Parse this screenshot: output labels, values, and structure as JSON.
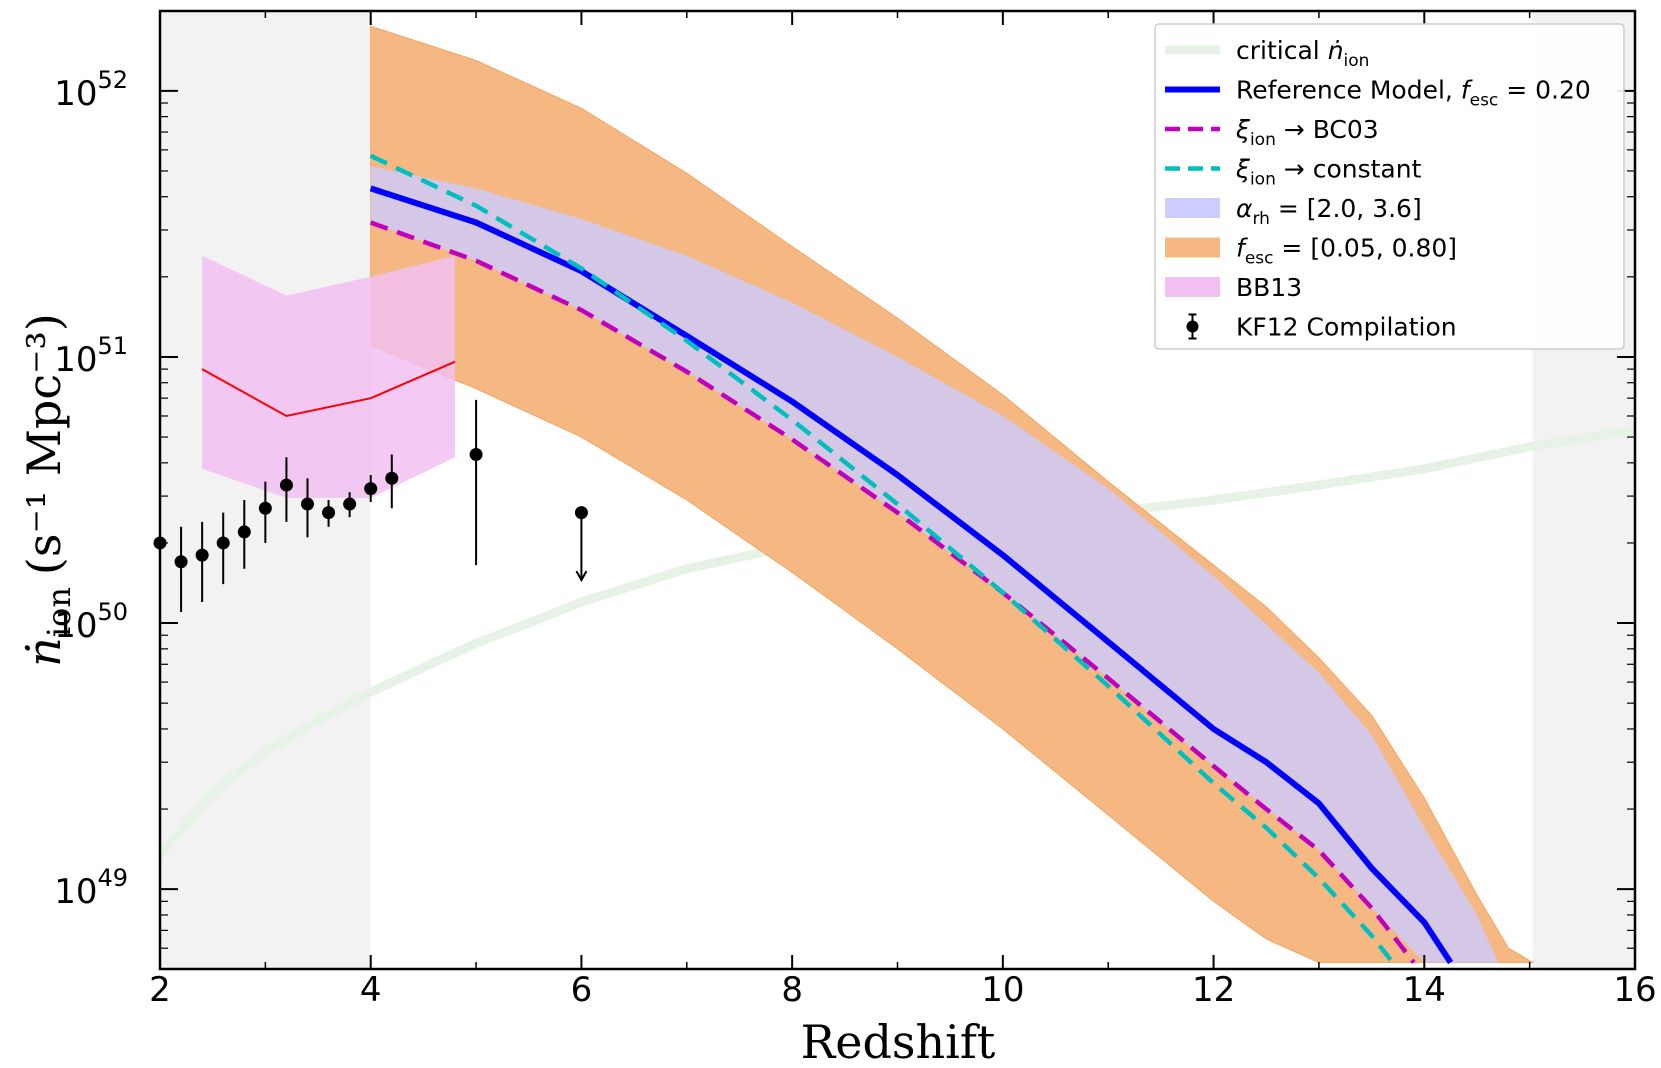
{
  "chart_data": {
    "type": "line",
    "xlabel": "Redshift",
    "ylabel_symbol": "ṅ",
    "ylabel_sub": "ion",
    "ylabel_units": "(s⁻¹ Mpc⁻³)",
    "xlim": [
      2,
      16
    ],
    "ylim_log10": [
      48.7,
      52.3
    ],
    "x_ticks": [
      2,
      4,
      6,
      8,
      10,
      12,
      14,
      16
    ],
    "x_tick_labels": [
      "2",
      "4",
      "6",
      "8",
      "10",
      "12",
      "14",
      "16"
    ],
    "y_ticks_log10": [
      49,
      50,
      51,
      52
    ],
    "y_tick_base": "10",
    "y_tick_exps": [
      "49",
      "50",
      "51",
      "52"
    ],
    "shaded_regions": [
      {
        "x0": 2,
        "x1": 4,
        "color": "#f2f2f2"
      },
      {
        "x0": 15.03,
        "x1": 16,
        "color": "#f2f2f2"
      }
    ],
    "colors": {
      "critical": "#e6f2e6",
      "reference": "#0000ff",
      "bc03": "#bf00bf",
      "constant": "#00bfbf",
      "alpha_band": "#ccccff",
      "fesc_band": "#f5b882",
      "fesc_edge": "#f3a563",
      "bb13_band": "#f2bff2",
      "bb13_line": "#ff0000",
      "kf12": "#000000"
    },
    "series": [
      {
        "name": "critical",
        "kind": "line",
        "colorKey": "critical",
        "x": [
          2,
          2.5,
          3,
          3.5,
          4,
          4.5,
          5,
          5.5,
          6,
          7,
          8,
          9,
          10,
          11,
          12,
          13,
          14,
          15,
          16
        ],
        "y": [
          1.35e+49,
          2.3e+49,
          3.3e+49,
          4.3e+49,
          5.5e+49,
          6.8e+49,
          8.4e+49,
          1e+50,
          1.2e+50,
          1.6e+50,
          1.95e+50,
          2.2e+50,
          2.4e+50,
          2.6e+50,
          2.9e+50,
          3.3e+50,
          3.8e+50,
          4.6e+50,
          5.3e+50
        ]
      },
      {
        "name": "reference",
        "kind": "line",
        "colorKey": "reference",
        "x": [
          4,
          5,
          6,
          7,
          8,
          9,
          10,
          11,
          12,
          12.5,
          13,
          13.5,
          14,
          14.25
        ],
        "y": [
          4.3e+51,
          3.2e+51,
          2.1e+51,
          1.2e+51,
          6.8e+50,
          3.6e+50,
          1.8e+50,
          8.5e+49,
          4e+49,
          3e+49,
          2.1e+49,
          1.2e+49,
          7.5e+48,
          5.3e+48
        ]
      },
      {
        "name": "bc03",
        "kind": "dashed",
        "colorKey": "bc03",
        "x": [
          4,
          5,
          6,
          7,
          8,
          9,
          10,
          11,
          12,
          12.5,
          13,
          13.5,
          13.9
        ],
        "y": [
          3.2e+51,
          2.3e+51,
          1.5e+51,
          8.8e+50,
          4.9e+50,
          2.6e+50,
          1.3e+50,
          6.2e+49,
          2.9e+49,
          2e+49,
          1.4e+49,
          8.5e+48,
          5.3e+48
        ]
      },
      {
        "name": "constant",
        "kind": "dashed",
        "colorKey": "constant",
        "x": [
          4,
          5,
          6,
          7,
          8,
          9,
          10,
          11,
          12,
          12.5,
          13,
          13.5,
          13.7
        ],
        "y": [
          5.7e+51,
          3.7e+51,
          2.15e+51,
          1.15e+51,
          5.8e+50,
          2.8e+50,
          1.3e+50,
          5.8e+49,
          2.5e+49,
          1.7e+49,
          1.1e+49,
          6.7e+48,
          5.3e+48
        ]
      },
      {
        "name": "alpha_band",
        "kind": "band",
        "colorKey": "alpha_band",
        "x": [
          4,
          5,
          6,
          7,
          8,
          9,
          10,
          11,
          12,
          13,
          13.5,
          14,
          14.5,
          14.7
        ],
        "upper": [
          5.2e+51,
          4.3e+51,
          3.3e+51,
          2.4e+51,
          1.6e+51,
          1e+51,
          6e+50,
          3.2e+50,
          1.5e+50,
          6.5e+49,
          3.8e+49,
          1.7e+49,
          8e+48,
          5.3e+48
        ],
        "lower": [
          3.2e+51,
          2.3e+51,
          1.5e+51,
          8.8e+50,
          4.9e+50,
          2.6e+50,
          1.3e+50,
          6.2e+49,
          2.9e+49,
          1.4e+49,
          8.5e+48,
          5.3e+48,
          5.3e+48,
          5.3e+48
        ]
      },
      {
        "name": "fesc_band",
        "kind": "band",
        "colorKey": "fesc_band",
        "x": [
          4,
          5,
          6,
          7,
          8,
          9,
          10,
          11,
          12,
          12.5,
          13,
          13.5,
          14,
          14.5,
          14.8,
          15.03
        ],
        "upper": [
          1.75e+52,
          1.3e+52,
          8.6e+51,
          4.9e+51,
          2.6e+51,
          1.4e+51,
          7.2e+50,
          3.4e+50,
          1.65e+50,
          1.15e+50,
          7.4e+49,
          4.5e+49,
          2.2e+49,
          9.5e+48,
          6e+48,
          5.3e+48
        ],
        "lower": [
          1.1e+51,
          7.6e+50,
          5e+50,
          2.9e+50,
          1.55e+50,
          8e+49,
          4e+49,
          1.9e+49,
          9e+48,
          6.5e+48,
          5.3e+48,
          5.3e+48,
          5.3e+48,
          5.3e+48,
          5.3e+48,
          5.3e+48
        ]
      },
      {
        "name": "bb13_band",
        "kind": "band",
        "colorKey": "bb13_band",
        "x": [
          2.4,
          3.2,
          4.0,
          4.8
        ],
        "upper": [
          2.4e+51,
          1.7e+51,
          2e+51,
          2.4e+51
        ],
        "lower": [
          3.8e+50,
          2.95e+50,
          2.95e+50,
          4.2e+50
        ]
      },
      {
        "name": "bb13_line",
        "kind": "line",
        "colorKey": "bb13_line",
        "x": [
          2.4,
          3.2,
          4.0,
          4.8
        ],
        "y": [
          9e+50,
          6e+50,
          7e+50,
          9.6e+50
        ]
      },
      {
        "name": "kf12",
        "kind": "errorbar",
        "colorKey": "kf12",
        "points": [
          {
            "x": 2.0,
            "y": 2e+50,
            "lo": 1.5e+50,
            "hi": 2.6e+50
          },
          {
            "x": 2.2,
            "y": 1.7e+50,
            "lo": 1.1e+50,
            "hi": 2.3e+50
          },
          {
            "x": 2.4,
            "y": 1.8e+50,
            "lo": 1.2e+50,
            "hi": 2.4e+50
          },
          {
            "x": 2.6,
            "y": 2e+50,
            "lo": 1.4e+50,
            "hi": 2.6e+50
          },
          {
            "x": 2.8,
            "y": 2.2e+50,
            "lo": 1.6e+50,
            "hi": 2.9e+50
          },
          {
            "x": 3.0,
            "y": 2.7e+50,
            "lo": 2e+50,
            "hi": 3.4e+50
          },
          {
            "x": 3.2,
            "y": 3.3e+50,
            "lo": 2.4e+50,
            "hi": 4.2e+50
          },
          {
            "x": 3.4,
            "y": 2.8e+50,
            "lo": 2.1e+50,
            "hi": 3.5e+50
          },
          {
            "x": 3.6,
            "y": 2.6e+50,
            "lo": 2.3e+50,
            "hi": 2.9e+50
          },
          {
            "x": 3.8,
            "y": 2.8e+50,
            "lo": 2.5e+50,
            "hi": 3.1e+50
          },
          {
            "x": 4.0,
            "y": 3.2e+50,
            "lo": 2.85e+50,
            "hi": 3.6e+50
          },
          {
            "x": 4.2,
            "y": 3.5e+50,
            "lo": 2.7e+50,
            "hi": 4.3e+50
          },
          {
            "x": 5.0,
            "y": 4.3e+50,
            "lo": 1.65e+50,
            "hi": 6.9e+50
          },
          {
            "x": 6.0,
            "y": 2.6e+50,
            "lo": 1.45e+50,
            "hi": 2.6e+50,
            "upper_limit": true
          }
        ]
      }
    ],
    "legend": {
      "position": "top-right",
      "entries": [
        {
          "key": "critical",
          "kind": "line",
          "main": "critical ",
          "sym": "ṅ",
          "sub": "ion",
          "tail": ""
        },
        {
          "key": "reference",
          "kind": "line",
          "main": "Reference Model, ",
          "sym": "f",
          "sub": "esc",
          "tail": " = 0.20"
        },
        {
          "key": "bc03",
          "kind": "dashed",
          "main": "",
          "sym": "ξ",
          "sub": "ion",
          "tail": " → BC03"
        },
        {
          "key": "constant",
          "kind": "dashed",
          "main": "",
          "sym": "ξ",
          "sub": "ion",
          "tail": " → constant"
        },
        {
          "key": "alpha_band",
          "kind": "patch",
          "main": "",
          "sym": "α",
          "sub": "rh",
          "tail": " = [2.0, 3.6]"
        },
        {
          "key": "fesc_band",
          "kind": "patch",
          "main": "",
          "sym": "f",
          "sub": "esc",
          "tail": " = [0.05, 0.80]"
        },
        {
          "key": "bb13_band",
          "kind": "patch",
          "main": "BB13",
          "sym": "",
          "sub": "",
          "tail": ""
        },
        {
          "key": "kf12",
          "kind": "errorbar",
          "main": "KF12 Compilation",
          "sym": "",
          "sub": "",
          "tail": ""
        }
      ]
    }
  }
}
